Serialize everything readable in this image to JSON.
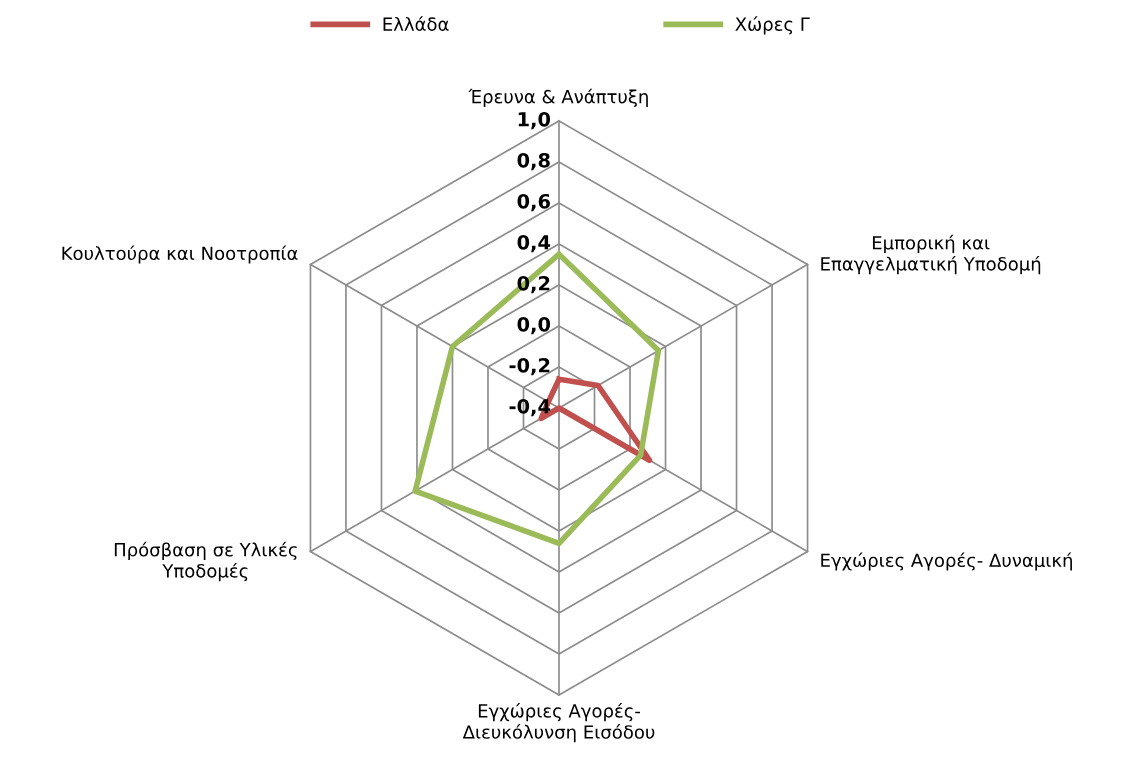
{
  "chart_data": {
    "type": "radar",
    "categories": [
      "Έρευνα & Ανάπτυξη",
      "Εμπορική και\nΕπαγγελματική Υποδομή",
      "Εγχώριες Αγορές- Δυναμική",
      "Εγχώριες Αγορές-\nΔιευκόλυνση Εισόδου",
      "Πρόσβαση σε Υλικές\nΥποδομές",
      "Κουλτούρα και Νοοτροπία"
    ],
    "series": [
      {
        "name": "Ελλάδα",
        "color": "#c0504d",
        "values": [
          -0.26,
          -0.18,
          0.11,
          -0.4,
          -0.3,
          -0.34
        ]
      },
      {
        "name": "Χώρες Γ",
        "color": "#9bbb59",
        "values": [
          0.35,
          0.16,
          0.06,
          0.26,
          0.41,
          0.2
        ]
      }
    ],
    "ylim": [
      -0.4,
      1.0
    ],
    "yticks": [
      {
        "value": -0.4,
        "label": "-0,4"
      },
      {
        "value": -0.2,
        "label": "-0,2"
      },
      {
        "value": 0.0,
        "label": "0,0"
      },
      {
        "value": 0.2,
        "label": "0,2"
      },
      {
        "value": 0.4,
        "label": "0,4"
      },
      {
        "value": 0.6,
        "label": "0,6"
      },
      {
        "value": 0.8,
        "label": "0,8"
      },
      {
        "value": 1.0,
        "label": "1,0"
      }
    ],
    "grid": true,
    "legend": "top"
  }
}
